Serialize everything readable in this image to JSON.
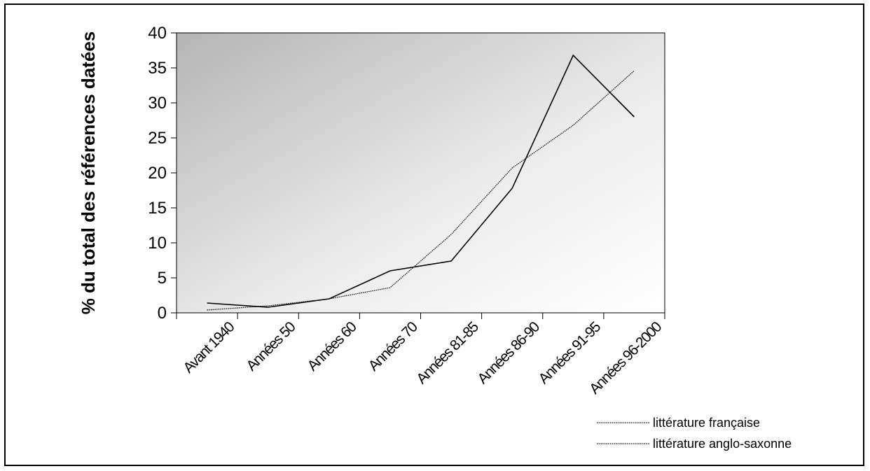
{
  "chart_data": {
    "type": "line",
    "ylabel": "% du total des références datées",
    "xlabel": "",
    "categories": [
      "Avant 1940",
      "Années 50",
      "Années 60",
      "Années 70",
      "Années 81-85",
      "Années 86-90",
      "Années 91-95",
      "Années 96-2000"
    ],
    "ylim": [
      0,
      40
    ],
    "yticks": [
      0,
      5,
      10,
      15,
      20,
      25,
      30,
      35,
      40
    ],
    "series": [
      {
        "name": "littérature française",
        "style": "dotted",
        "values": [
          0.4,
          1.0,
          2.0,
          3.6,
          11.2,
          20.7,
          26.8,
          34.6
        ]
      },
      {
        "name": "littérature anglo-saxonne",
        "style": "solid",
        "values": [
          1.4,
          0.8,
          2.0,
          6.0,
          7.4,
          17.8,
          36.8,
          28.0
        ]
      }
    ],
    "legend_position": "bottom-right",
    "plot_background": "gradient gray to white",
    "colors": {
      "line": "#000000",
      "plot_dark": "#b8b8b8",
      "plot_light": "#ffffff"
    }
  }
}
